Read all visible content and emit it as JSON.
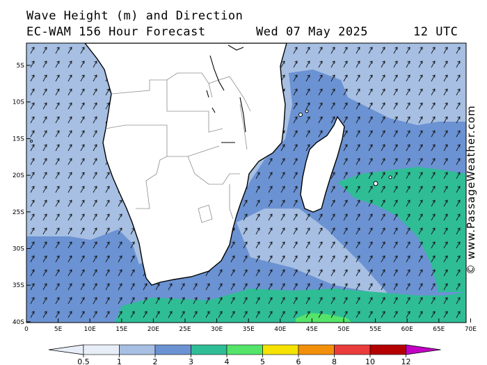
{
  "title": {
    "line1": "Wave Height (m) and Direction",
    "line2_left": "EC-WAM 156 Hour Forecast",
    "line2_date": "Wed 07 May 2025",
    "line2_time": "12 UTC"
  },
  "credit": "© www.PassageWeather.com",
  "axes": {
    "lat_labels": [
      "5S",
      "10S",
      "15S",
      "20S",
      "25S",
      "30S",
      "35S",
      "40S"
    ],
    "lon_labels": [
      "0",
      "5E",
      "10E",
      "15E",
      "20E",
      "25E",
      "30E",
      "35E",
      "40E",
      "45E",
      "50E",
      "55E",
      "60E",
      "65E",
      "70E"
    ]
  },
  "legend": {
    "labels": [
      "0.5",
      "1",
      "2",
      "3",
      "4",
      "5",
      "6",
      "8",
      "10",
      "12"
    ],
    "colors": [
      "#e8eef8",
      "#a6bfe3",
      "#6b92d2",
      "#2fbd96",
      "#54e46a",
      "#f5e200",
      "#f3900b",
      "#ea3c3c",
      "#b50000",
      "#c400c4"
    ]
  },
  "map": {
    "land_color": "#ffffff",
    "border_color": "#8c8c8c",
    "arrow_direction": "northeast"
  }
}
